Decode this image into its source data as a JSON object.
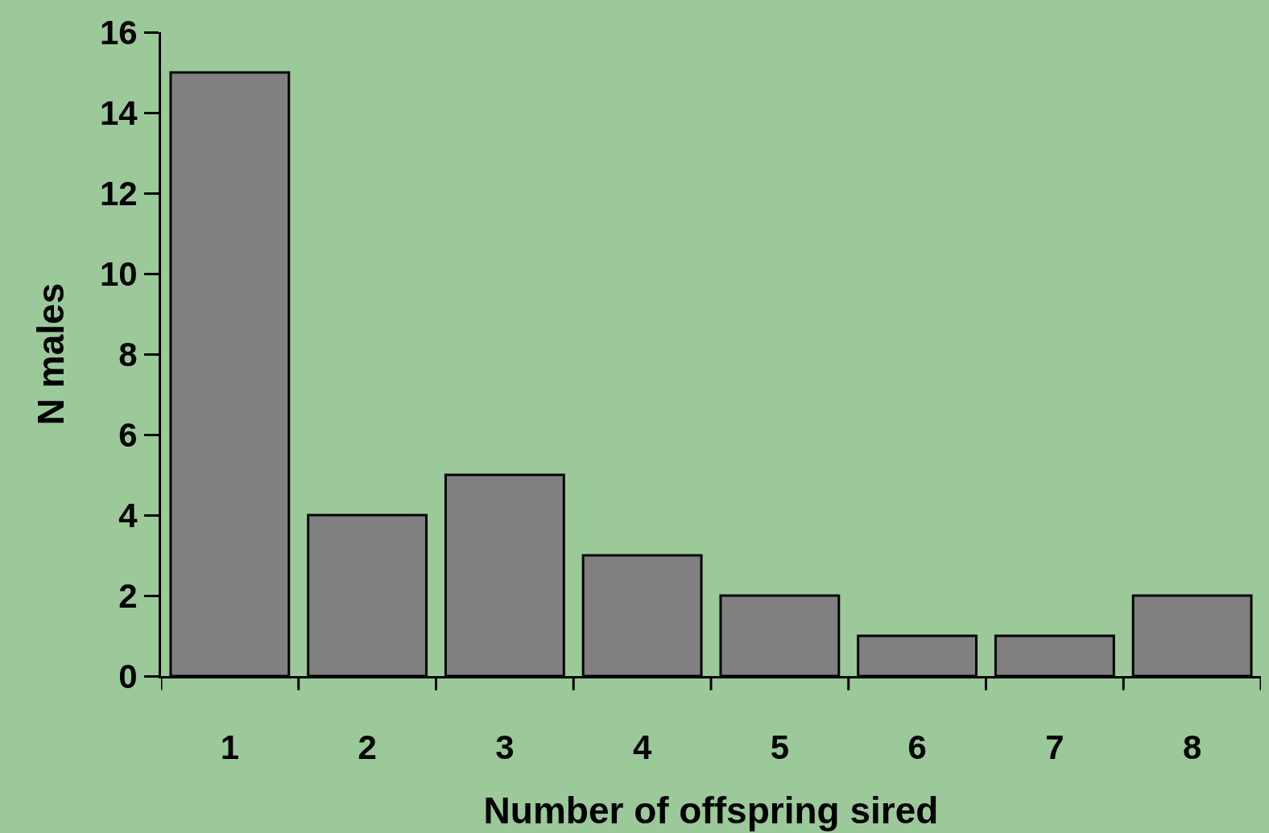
{
  "chart_data": {
    "type": "bar",
    "xlabel": "Number of offspring sired",
    "ylabel": "N males",
    "categories": [
      "1",
      "2",
      "3",
      "4",
      "5",
      "6",
      "7",
      "8"
    ],
    "values": [
      15,
      4,
      5,
      3,
      2,
      1,
      1,
      2
    ],
    "color": "#808080",
    "ylim": [
      0,
      16
    ],
    "yticks": [
      0,
      2,
      4,
      6,
      8,
      10,
      12,
      14,
      16
    ],
    "grid": false,
    "legend": false
  }
}
